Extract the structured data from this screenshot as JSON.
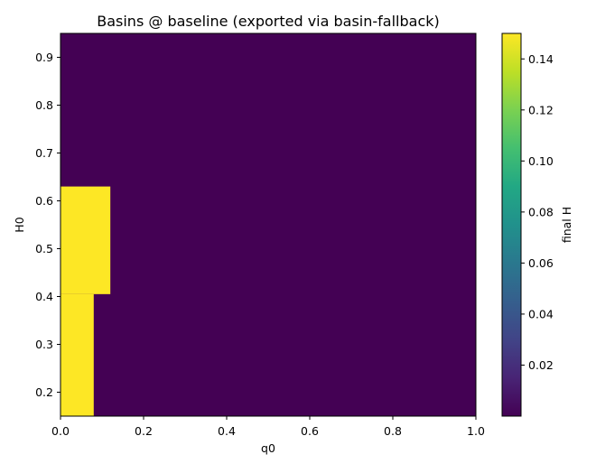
{
  "chart_data": {
    "type": "heatmap",
    "title": "Basins @ baseline (exported via basin-fallback)",
    "xlabel": "q0",
    "ylabel": "H0",
    "xlim": [
      0.0,
      1.0
    ],
    "ylim": [
      0.15,
      0.95
    ],
    "xticks": [
      "0.0",
      "0.2",
      "0.4",
      "0.6",
      "0.8",
      "1.0"
    ],
    "yticks": [
      "0.2",
      "0.3",
      "0.4",
      "0.5",
      "0.6",
      "0.7",
      "0.8",
      "0.9"
    ],
    "colormap": "viridis",
    "background_value": 0.0,
    "regions": [
      {
        "x": [
          0.0,
          0.08
        ],
        "y": [
          0.15,
          0.405
        ],
        "value": 0.15
      },
      {
        "x": [
          0.0,
          0.12
        ],
        "y": [
          0.405,
          0.63
        ],
        "value": 0.15
      }
    ],
    "colorbar": {
      "label": "final H",
      "range": [
        0.0,
        0.15
      ],
      "ticks": [
        "0.02",
        "0.04",
        "0.06",
        "0.08",
        "0.10",
        "0.12",
        "0.14"
      ]
    },
    "grid": false,
    "legend": "none"
  },
  "colors": {
    "low": "#440154",
    "high": "#fde725",
    "axis": "#000000"
  }
}
